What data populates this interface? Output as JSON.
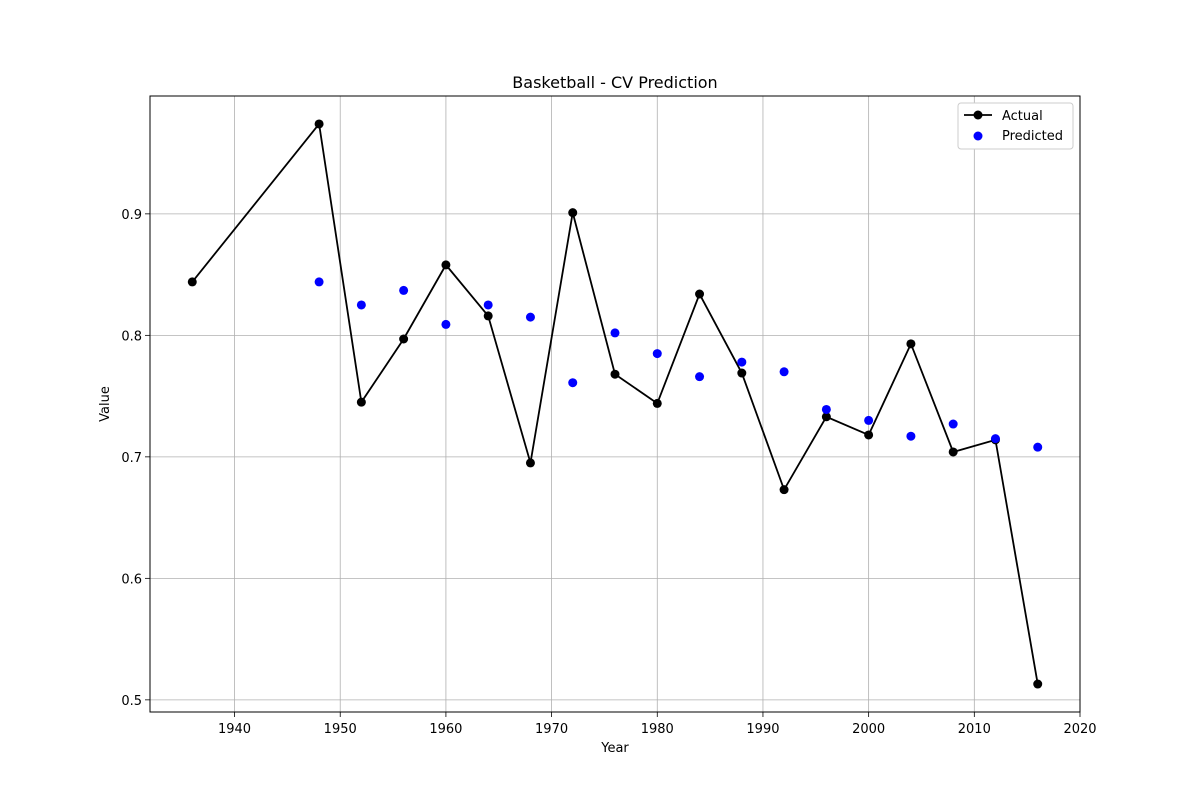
{
  "chart_data": {
    "type": "line",
    "title": "Basketball - CV Prediction",
    "xlabel": "Year",
    "ylabel": "Value",
    "xlim": [
      1932,
      2020
    ],
    "ylim": [
      0.49,
      0.997
    ],
    "xticks": [
      1940,
      1950,
      1960,
      1970,
      1980,
      1990,
      2000,
      2010,
      2020
    ],
    "yticks": [
      0.5,
      0.6,
      0.7,
      0.8,
      0.9
    ],
    "grid": true,
    "legend_position": "top-right",
    "series": [
      {
        "name": "Actual",
        "style": "line-marker",
        "color": "#000000",
        "x": [
          1936,
          1948,
          1952,
          1956,
          1960,
          1964,
          1968,
          1972,
          1976,
          1980,
          1984,
          1988,
          1992,
          1996,
          2000,
          2004,
          2008,
          2012,
          2016
        ],
        "y": [
          0.844,
          0.974,
          0.745,
          0.797,
          0.858,
          0.816,
          0.695,
          0.901,
          0.768,
          0.744,
          0.834,
          0.769,
          0.673,
          0.733,
          0.718,
          0.793,
          0.704,
          0.714,
          0.513
        ]
      },
      {
        "name": "Predicted",
        "style": "scatter",
        "color": "#0000ff",
        "x": [
          1948,
          1952,
          1956,
          1960,
          1964,
          1968,
          1972,
          1976,
          1980,
          1984,
          1988,
          1992,
          1996,
          2000,
          2004,
          2008,
          2012,
          2016
        ],
        "y": [
          0.844,
          0.825,
          0.837,
          0.809,
          0.825,
          0.815,
          0.761,
          0.802,
          0.785,
          0.766,
          0.778,
          0.77,
          0.739,
          0.73,
          0.717,
          0.727,
          0.715,
          0.708
        ]
      }
    ]
  }
}
